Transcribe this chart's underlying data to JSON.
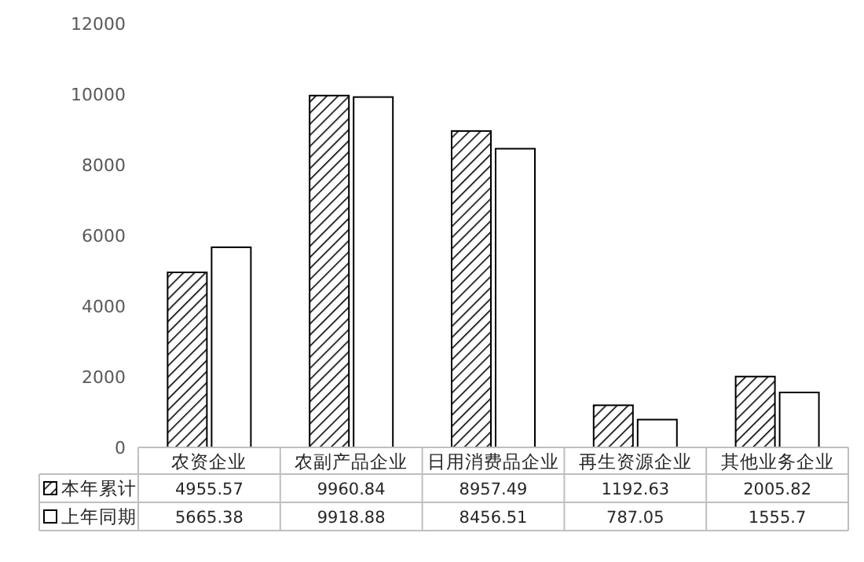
{
  "chart_data": {
    "type": "bar",
    "categories": [
      "农资企业",
      "农副产品企业",
      "日用消费品企业",
      "再生资源企业",
      "其他业务企业"
    ],
    "series": [
      {
        "name": "本年累计",
        "color": "#000000",
        "values": [
          4955.57,
          9960.84,
          8957.49,
          1192.63,
          2005.82
        ]
      },
      {
        "name": "上年同期",
        "color": "#ffffff",
        "values": [
          5665.38,
          9918.88,
          8456.51,
          787.05,
          1555.7
        ]
      }
    ],
    "ylim": [
      0,
      12000
    ],
    "yticks": [
      0,
      2000,
      4000,
      6000,
      8000,
      10000,
      12000
    ],
    "grid": false,
    "legend": "bottom",
    "data_labels": true
  }
}
